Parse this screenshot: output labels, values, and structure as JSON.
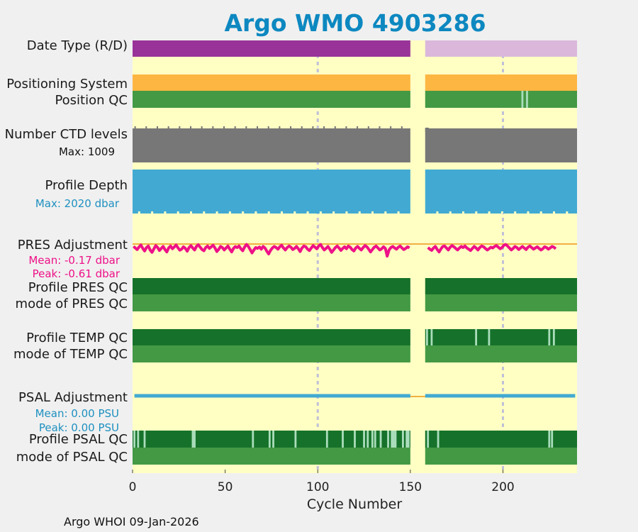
{
  "chart_data": {
    "type": "timeline",
    "title": "Argo WMO 4903286",
    "xlabel": "Cycle Number",
    "xlim": [
      0,
      240
    ],
    "xticks": [
      0,
      50,
      100,
      150,
      200
    ],
    "gridlines_at": [
      100,
      200
    ],
    "data_gap": [
      150,
      158
    ],
    "footer": "Argo WHOI 09-Jan-2026",
    "rows": [
      {
        "label": "Date Type (R/D)",
        "type": "segments",
        "segments": [
          {
            "from": 0,
            "to": 150,
            "color": "#993399"
          },
          {
            "from": 158,
            "to": 240,
            "color": "#dbb8db"
          }
        ]
      },
      {
        "label": "Positioning System",
        "type": "segments",
        "segments": [
          {
            "from": 0,
            "to": 150,
            "color": "#fdb642"
          },
          {
            "from": 158,
            "to": 240,
            "color": "#fdb642"
          }
        ]
      },
      {
        "label": "Position QC",
        "type": "segments",
        "segments": [
          {
            "from": 0,
            "to": 150,
            "color": "#449944"
          },
          {
            "from": 158,
            "to": 240,
            "color": "#449944"
          }
        ],
        "marks": [
          {
            "at": 210.5,
            "color": "#aaddbb"
          },
          {
            "at": 213,
            "color": "#aaddbb"
          }
        ]
      },
      {
        "label": "Number CTD levels",
        "type": "segments",
        "sub": "Max: 1009",
        "segments": [
          {
            "from": 0,
            "to": 150,
            "color": "#777777"
          },
          {
            "from": 158,
            "to": 240,
            "color": "#777777"
          }
        ]
      },
      {
        "label": "Profile Depth",
        "type": "segments",
        "sub": "Max: 2020 dbar",
        "segments": [
          {
            "from": 0,
            "to": 150,
            "color": "#42aad2"
          },
          {
            "from": 158,
            "to": 240,
            "color": "#42aad2"
          }
        ]
      },
      {
        "label": "PRES Adjustment",
        "type": "series",
        "series_color": "#ee1188",
        "sub": "Mean: -0.17 dbar",
        "sub2": "Peak: -0.61 dbar",
        "values": [
          -0.12,
          -0.2,
          -0.28,
          -0.15,
          -0.05,
          -0.22,
          -0.35,
          -0.18,
          -0.1,
          -0.3,
          -0.42,
          -0.25,
          -0.08,
          -0.17,
          -0.33,
          -0.22,
          -0.12,
          -0.28,
          -0.4,
          -0.2,
          -0.1,
          -0.24,
          -0.15,
          -0.05,
          -0.19,
          -0.31,
          -0.26,
          -0.14,
          -0.22,
          -0.36,
          -0.18,
          -0.08,
          -0.2,
          -0.3,
          -0.12,
          -0.04,
          -0.16,
          -0.28,
          -0.34,
          -0.18,
          -0.1,
          -0.22,
          -0.14,
          -0.06,
          -0.2,
          -0.38,
          -0.27,
          -0.12,
          -0.18,
          -0.3,
          -0.2,
          -0.1,
          -0.26,
          -0.4,
          -0.22,
          -0.13,
          -0.18,
          -0.1,
          -0.24,
          -0.34,
          -0.15,
          -0.02,
          -0.12,
          -0.28,
          -0.45,
          -0.3,
          -0.18,
          -0.22,
          -0.15,
          -0.26,
          -0.12,
          -0.2,
          -0.36,
          -0.5,
          -0.32,
          -0.2,
          -0.12,
          -0.18,
          -0.26,
          -0.14,
          -0.06,
          -0.2,
          -0.3,
          -0.18,
          -0.1,
          -0.16,
          -0.28,
          -0.22,
          -0.12,
          -0.24,
          -0.38,
          -0.2,
          -0.1,
          -0.14,
          -0.26,
          -0.33,
          -0.2,
          -0.08,
          -0.16,
          -0.24,
          -0.1,
          -0.02,
          -0.18,
          -0.3,
          -0.22,
          -0.12,
          -0.26,
          -0.42,
          -0.3,
          -0.18,
          -0.1,
          -0.2,
          -0.32,
          -0.22,
          -0.14,
          -0.24,
          -0.1,
          -0.16,
          -0.28,
          -0.35,
          -0.2,
          -0.12,
          -0.22,
          -0.3,
          -0.18,
          -0.08,
          -0.14,
          -0.26,
          -0.4,
          -0.28,
          -0.16,
          -0.1,
          -0.2,
          -0.3,
          -0.24,
          -0.14,
          -0.22,
          -0.61,
          -0.3,
          -0.18,
          -0.12,
          -0.2,
          -0.26,
          -0.16,
          -0.1,
          -0.2,
          -0.28,
          -0.22,
          -0.14,
          -0.2,
          null,
          null,
          null,
          null,
          null,
          null,
          null,
          null,
          null,
          -0.18,
          -0.26,
          -0.32,
          -0.2,
          -0.12,
          -0.28,
          -0.4,
          -0.25,
          -0.12,
          -0.1,
          -0.2,
          -0.3,
          -0.16,
          -0.08,
          -0.14,
          -0.22,
          -0.3,
          -0.2,
          -0.12,
          -0.18,
          -0.1,
          -0.2,
          -0.26,
          -0.33,
          -0.22,
          -0.12,
          -0.2,
          -0.3,
          -0.18,
          -0.1,
          -0.14,
          -0.22,
          -0.3,
          -0.24,
          -0.16,
          -0.2,
          -0.12,
          -0.08,
          -0.16,
          -0.24,
          -0.18,
          -0.06,
          -0.02,
          -0.1,
          -0.2,
          -0.3,
          -0.22,
          -0.12,
          -0.18,
          -0.28,
          -0.2,
          -0.12,
          -0.2,
          -0.28,
          -0.16,
          -0.1,
          -0.18,
          -0.26,
          -0.2,
          -0.14,
          -0.22,
          -0.3,
          -0.24,
          -0.14,
          -0.18,
          -0.26,
          -0.2,
          -0.12,
          -0.16,
          -0.24
        ]
      },
      {
        "label": "Profile PRES QC",
        "type": "segments",
        "segments": [
          {
            "from": 0,
            "to": 150,
            "color": "#16722a"
          },
          {
            "from": 158,
            "to": 240,
            "color": "#16722a"
          }
        ]
      },
      {
        "label": "mode of PRES QC",
        "type": "segments",
        "segments": [
          {
            "from": 0,
            "to": 150,
            "color": "#449944"
          },
          {
            "from": 158,
            "to": 240,
            "color": "#449944"
          }
        ]
      },
      {
        "label": "Profile TEMP QC",
        "type": "segments",
        "segments": [
          {
            "from": 0,
            "to": 150,
            "color": "#16722a"
          },
          {
            "from": 158,
            "to": 240,
            "color": "#16722a"
          }
        ],
        "marks": [
          {
            "at": 159,
            "color": "#aaddbb"
          },
          {
            "at": 161.5,
            "color": "#aaddbb"
          },
          {
            "at": 185.5,
            "color": "#aaddbb"
          },
          {
            "at": 192.5,
            "color": "#aaddbb"
          },
          {
            "at": 225,
            "color": "#aaddbb"
          },
          {
            "at": 227.5,
            "color": "#aaddbb"
          }
        ]
      },
      {
        "label": "mode of TEMP QC",
        "type": "segments",
        "segments": [
          {
            "from": 0,
            "to": 150,
            "color": "#449944"
          },
          {
            "from": 158,
            "to": 240,
            "color": "#449944"
          }
        ]
      },
      {
        "label": "PSAL Adjustment",
        "type": "line",
        "series_color": "#42aad2",
        "sub": "Mean: 0.00 PSU",
        "sub2": "Peak: 0.00 PSU",
        "value": 0
      },
      {
        "label": "Profile PSAL QC",
        "type": "segments",
        "segments": [
          {
            "from": 0,
            "to": 150,
            "color": "#16722a"
          },
          {
            "from": 158,
            "to": 240,
            "color": "#16722a"
          }
        ],
        "marks": [
          {
            "at": 1,
            "color": "#aaddbb"
          },
          {
            "at": 3,
            "color": "#aaddbb"
          },
          {
            "at": 6.5,
            "color": "#aaddbb"
          },
          {
            "at": 32.5,
            "color": "#aaddbb"
          },
          {
            "at": 33.5,
            "color": "#aaddbb"
          },
          {
            "at": 65,
            "color": "#aaddbb"
          },
          {
            "at": 74,
            "color": "#aaddbb"
          },
          {
            "at": 76,
            "color": "#aaddbb"
          },
          {
            "at": 88,
            "color": "#aaddbb"
          },
          {
            "at": 105,
            "color": "#aaddbb"
          },
          {
            "at": 113.5,
            "color": "#aaddbb"
          },
          {
            "at": 120,
            "color": "#aaddbb"
          },
          {
            "at": 125,
            "color": "#aaddbb"
          },
          {
            "at": 127,
            "color": "#aaddbb"
          },
          {
            "at": 129.5,
            "color": "#aaddbb"
          },
          {
            "at": 131,
            "color": "#aaddbb"
          },
          {
            "at": 134,
            "color": "#aaddbb"
          },
          {
            "at": 138,
            "color": "#aaddbb"
          },
          {
            "at": 140,
            "color": "#aaddbb"
          },
          {
            "at": 141,
            "color": "#aaddbb"
          },
          {
            "at": 142,
            "color": "#aaddbb"
          },
          {
            "at": 146,
            "color": "#aaddbb"
          },
          {
            "at": 148,
            "color": "#aaddbb"
          },
          {
            "at": 149,
            "color": "#aaddbb"
          },
          {
            "at": 159.5,
            "color": "#aaddbb"
          },
          {
            "at": 165,
            "color": "#aaddbb"
          },
          {
            "at": 225,
            "color": "#aaddbb"
          },
          {
            "at": 226.5,
            "color": "#aaddbb"
          }
        ]
      },
      {
        "label": "mode of PSAL QC",
        "type": "segments",
        "segments": [
          {
            "from": 0,
            "to": 150,
            "color": "#449944"
          },
          {
            "from": 158,
            "to": 240,
            "color": "#449944"
          }
        ]
      }
    ]
  },
  "colors": {
    "background": "#f0f0f0",
    "plot_background": "#ffffc4",
    "title": "#0d88c0",
    "gridline": "#c0c0d8",
    "zero_line": "#f0b040",
    "pres_text": "#ee1188",
    "psal_text": "#1e90c0"
  }
}
